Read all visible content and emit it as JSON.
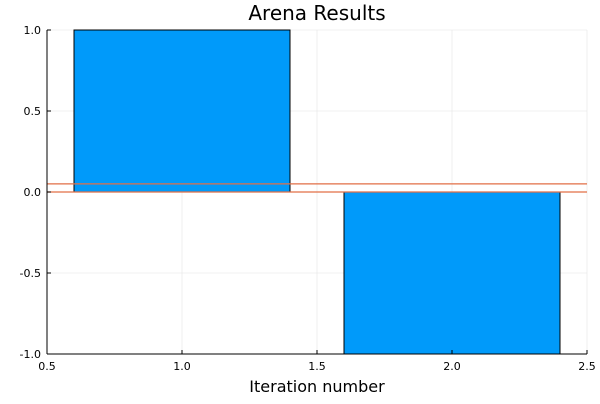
{
  "chart_data": {
    "type": "bar",
    "title": "Arena Results",
    "xlabel": "Iteration number",
    "ylabel": "",
    "xlim": [
      0.5,
      2.5
    ],
    "ylim": [
      -1.0,
      1.0
    ],
    "x_ticks": [
      0.5,
      1.0,
      1.5,
      2.0,
      2.5
    ],
    "x_tick_labels": [
      "0.5",
      "1.0",
      "1.5",
      "2.0",
      "2.5"
    ],
    "y_ticks": [
      -1.0,
      -0.5,
      0.0,
      0.5,
      1.0
    ],
    "y_tick_labels": [
      "-1.0",
      "-0.5",
      "0.0",
      "0.5",
      "1.0"
    ],
    "grid": true,
    "bars": [
      {
        "x": 1,
        "value": 1.0,
        "width": 0.8
      },
      {
        "x": 2,
        "value": -1.0,
        "width": 0.8
      }
    ],
    "hlines": [
      {
        "y": 0.05
      },
      {
        "y": 0.0
      }
    ],
    "colors": {
      "bar_fill": "#009AFA",
      "bar_stroke": "#000000",
      "hline": "#E26F46",
      "grid": "#EBEBEB",
      "axis": "#000000",
      "text": "#000000"
    }
  }
}
